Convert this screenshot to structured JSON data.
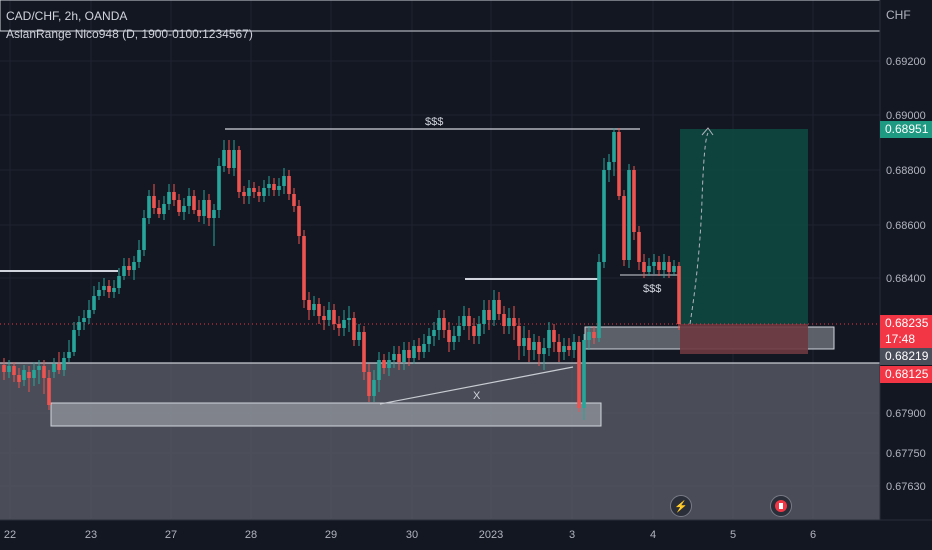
{
  "header": {
    "symbol_line": "CAD/CHF, 2h, OANDA",
    "indicator_line": "AsianRange Nico948 (D, 1900-0100:1234567)"
  },
  "currency": "CHF",
  "y_axis_labels": [
    "0.69200",
    "0.69000",
    "0.68800",
    "0.68600",
    "0.68400",
    "0.67900",
    "0.67750",
    "0.67630"
  ],
  "x_axis_labels": [
    "22",
    "23",
    "27",
    "28",
    "29",
    "30",
    "2023",
    "3",
    "4",
    "5",
    "6"
  ],
  "price_tags": {
    "target": "0.68951",
    "current": "0.68235",
    "countdown": "17:48",
    "range_high": "0.68219",
    "range_low": "0.68125"
  },
  "annotations": {
    "top_liquidity": "$$$",
    "bottom_liquidity": "$$$",
    "sweep_mark": "X"
  },
  "colors": {
    "background": "#131722",
    "bull": "#26a69a",
    "bear": "#ef5350",
    "target_tag": "#1f9a82",
    "current_tag": "#f23645",
    "range_tag": "#4a4e5a"
  },
  "icons": [
    "lightning-icon",
    "canada-flag-icon"
  ]
}
